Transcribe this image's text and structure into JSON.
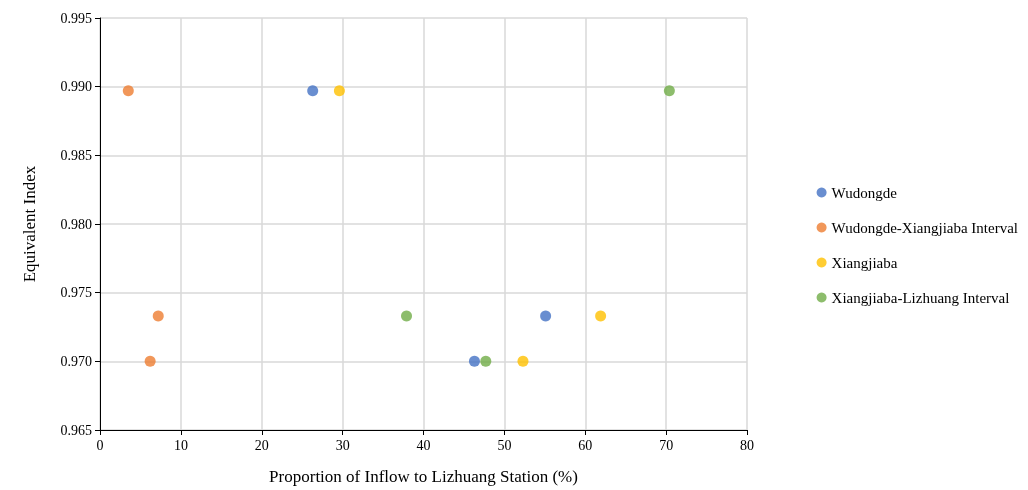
{
  "chart_data": {
    "type": "scatter",
    "xlabel": "Proportion of Inflow to Lizhuang Station (%)",
    "ylabel": "Equivalent Index",
    "xlim": [
      0,
      80
    ],
    "xticks": [
      0,
      10,
      20,
      30,
      40,
      50,
      60,
      70,
      80
    ],
    "ylim": [
      0.965,
      0.995
    ],
    "yticks": [
      {
        "value": 0.965,
        "label": "0.965"
      },
      {
        "value": 0.97,
        "label": "0.970"
      },
      {
        "value": 0.975,
        "label": "0.975"
      },
      {
        "value": 0.98,
        "label": "0.980"
      },
      {
        "value": 0.985,
        "label": "0.985"
      },
      {
        "value": 0.99,
        "label": "0.990"
      },
      {
        "value": 0.995,
        "label": "0.995"
      }
    ],
    "grid": true,
    "legend": "right",
    "marker": "circle",
    "series": [
      {
        "name": "Wudongde",
        "color": "#4472c4",
        "x": [
          26.3,
          46.3,
          55.1
        ],
        "values": [
          0.9897,
          0.97,
          0.9733
        ]
      },
      {
        "name": "Wudongde-Xiangjiaba Interval",
        "color": "#ed7d31",
        "x": [
          3.5,
          7.2,
          6.2
        ],
        "values": [
          0.9897,
          0.9733,
          0.97
        ]
      },
      {
        "name": "Xiangjiaba",
        "color": "#ffc000",
        "x": [
          29.6,
          52.3,
          61.9
        ],
        "values": [
          0.9897,
          0.97,
          0.9733
        ]
      },
      {
        "name": "Xiangjiaba-Lizhuang Interval",
        "color": "#70ad47",
        "x": [
          37.9,
          47.7,
          70.4
        ],
        "values": [
          0.9733,
          0.97,
          0.9897
        ]
      }
    ]
  }
}
